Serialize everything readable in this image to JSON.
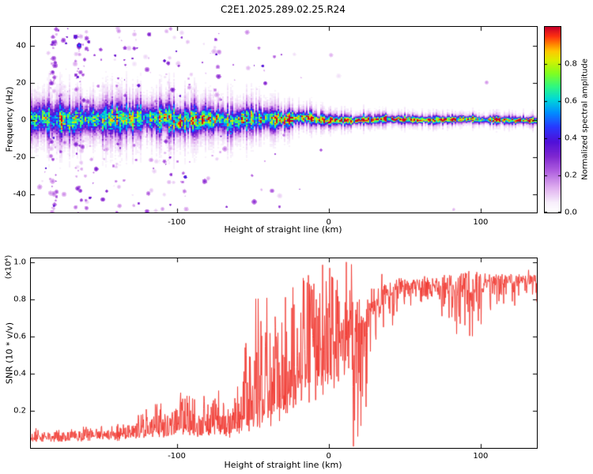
{
  "title": "C2E1.2025.289.02.25.R24",
  "colors": {
    "background": "#ffffff",
    "axis": "#000000",
    "snr_line": "#f03830"
  },
  "chart_data": [
    {
      "type": "heatmap",
      "xlabel": "Height of straight line (km)",
      "ylabel": "Frequency (Hz)",
      "xlim": [
        -196,
        137
      ],
      "ylim": [
        -50,
        50
      ],
      "xticks": [
        {
          "v": -100,
          "label": "-100"
        },
        {
          "v": 0,
          "label": "0"
        },
        {
          "v": 100,
          "label": "100"
        }
      ],
      "yticks": [
        {
          "v": 40,
          "label": "40"
        },
        {
          "v": 20,
          "label": "20"
        },
        {
          "v": 0,
          "label": "0"
        },
        {
          "v": -20,
          "label": "-20"
        },
        {
          "v": -40,
          "label": "-40"
        }
      ],
      "colorbar": {
        "label": "Normalized spectral amplitude",
        "range": [
          0,
          1
        ],
        "ticks": [
          {
            "v": 0.0,
            "label": "0.0"
          },
          {
            "v": 0.2,
            "label": "0.2"
          },
          {
            "v": 0.4,
            "label": "0.4"
          },
          {
            "v": 0.6,
            "label": "0.6"
          },
          {
            "v": 0.8,
            "label": "0.8"
          }
        ]
      },
      "colormap_stops": [
        [
          0.0,
          255,
          255,
          255
        ],
        [
          0.05,
          248,
          240,
          252
        ],
        [
          0.13,
          224,
          176,
          240
        ],
        [
          0.22,
          176,
          96,
          224
        ],
        [
          0.3,
          128,
          40,
          208
        ],
        [
          0.38,
          80,
          16,
          216
        ],
        [
          0.46,
          40,
          56,
          255
        ],
        [
          0.54,
          0,
          144,
          255
        ],
        [
          0.61,
          0,
          216,
          216
        ],
        [
          0.68,
          48,
          248,
          128
        ],
        [
          0.75,
          128,
          255,
          32
        ],
        [
          0.82,
          216,
          240,
          0
        ],
        [
          0.87,
          255,
          200,
          0
        ],
        [
          0.91,
          255,
          128,
          0
        ],
        [
          0.95,
          255,
          48,
          16
        ],
        [
          1.0,
          200,
          0,
          40
        ]
      ],
      "band_profile_columns": [
        "height_km",
        "core_amplitude",
        "halfwidth_hz",
        "speckle_density",
        "red_dot_prob",
        "center_jitter_hz",
        "center_wander_scale"
      ],
      "band_profile": [
        [
          -196,
          0.55,
          5.0,
          0.5,
          0.0,
          2.5,
          1.0
        ],
        [
          -160,
          0.56,
          5.5,
          0.44,
          0.0,
          2.5,
          1.0
        ],
        [
          -130,
          0.58,
          5.0,
          0.34,
          0.0,
          2.2,
          1.0
        ],
        [
          -100,
          0.6,
          4.8,
          0.18,
          0.0,
          2.0,
          1.0
        ],
        [
          -75,
          0.62,
          4.4,
          0.11,
          0.0,
          1.8,
          1.0
        ],
        [
          -55,
          0.63,
          4.0,
          0.07,
          0.02,
          1.5,
          1.0
        ],
        [
          -38,
          0.68,
          3.2,
          0.05,
          0.2,
          1.2,
          1.0
        ],
        [
          -25,
          0.74,
          2.4,
          0.03,
          0.35,
          1.0,
          0.9
        ],
        [
          -10,
          0.77,
          1.9,
          0.015,
          0.32,
          0.8,
          0.8
        ],
        [
          5,
          0.78,
          1.6,
          0.008,
          0.25,
          0.6,
          0.6
        ],
        [
          20,
          0.8,
          1.4,
          0.005,
          0.15,
          0.5,
          0.45
        ],
        [
          45,
          0.8,
          1.2,
          0.003,
          0.05,
          0.4,
          0.35
        ],
        [
          90,
          0.8,
          1.1,
          0.002,
          0.04,
          0.4,
          0.3
        ],
        [
          137,
          0.8,
          1.1,
          0.002,
          0.04,
          0.4,
          0.3
        ]
      ]
    },
    {
      "type": "line",
      "xlabel": "Height of straight line (km)",
      "ylabel": "SNR (10 * v/v)",
      "ylabel_scale": "(x10⁴)",
      "xlim": [
        -196,
        137
      ],
      "ylim": [
        0,
        1.02
      ],
      "xticks": [
        {
          "v": -100,
          "label": "-100"
        },
        {
          "v": 0,
          "label": "0"
        },
        {
          "v": 100,
          "label": "100"
        }
      ],
      "yticks": [
        {
          "v": 1.0,
          "label": "1.0"
        },
        {
          "v": 0.8,
          "label": "0.8"
        },
        {
          "v": 0.6,
          "label": "0.6"
        },
        {
          "v": 0.4,
          "label": "0.4"
        },
        {
          "v": 0.2,
          "label": "0.2"
        }
      ],
      "line_color": "#f03830",
      "envelope_columns": [
        "height_km",
        "baseline",
        "spike_amplitude"
      ],
      "envelope": [
        [
          -196,
          0.045,
          0.05
        ],
        [
          -170,
          0.045,
          0.05
        ],
        [
          -150,
          0.05,
          0.07
        ],
        [
          -132,
          0.055,
          0.09
        ],
        [
          -118,
          0.065,
          0.17
        ],
        [
          -105,
          0.07,
          0.16
        ],
        [
          -95,
          0.08,
          0.22
        ],
        [
          -85,
          0.075,
          0.18
        ],
        [
          -75,
          0.08,
          0.24
        ],
        [
          -65,
          0.07,
          0.13
        ],
        [
          -57,
          0.09,
          0.35
        ],
        [
          -50,
          0.13,
          0.75
        ],
        [
          -44,
          0.14,
          0.88
        ],
        [
          -38,
          0.15,
          0.55
        ],
        [
          -30,
          0.2,
          0.6
        ],
        [
          -22,
          0.26,
          0.62
        ],
        [
          -15,
          0.3,
          0.65
        ],
        [
          -8,
          0.34,
          0.66
        ],
        [
          0,
          0.38,
          0.62
        ],
        [
          7,
          0.42,
          0.6
        ],
        [
          13,
          0.5,
          0.5
        ],
        [
          19,
          0.62,
          0.33
        ],
        [
          26,
          0.76,
          0.18
        ],
        [
          35,
          0.85,
          0.09
        ],
        [
          50,
          0.885,
          0.06
        ],
        [
          70,
          0.9,
          0.05
        ],
        [
          85,
          0.89,
          0.1
        ],
        [
          95,
          0.89,
          0.13
        ],
        [
          103,
          0.905,
          0.07
        ],
        [
          118,
          0.91,
          0.05
        ],
        [
          137,
          0.91,
          0.05
        ]
      ]
    }
  ]
}
